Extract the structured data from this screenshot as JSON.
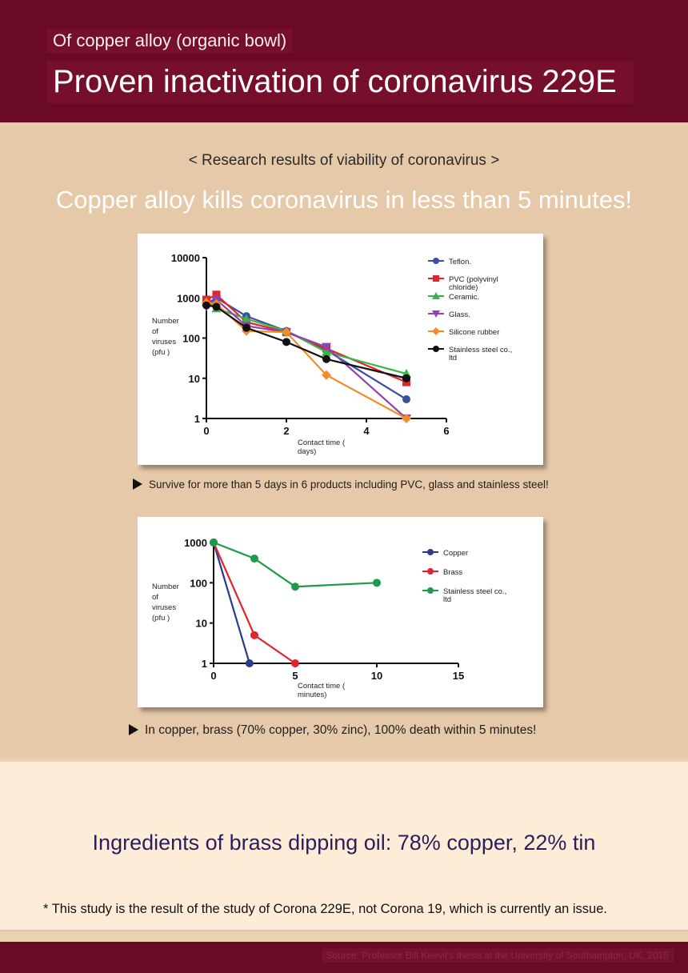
{
  "header": {
    "subtitle": "Of copper alloy (organic bowl)",
    "title": "Proven inactivation of coronavirus 229E"
  },
  "research_label": "< Research results of viability of coronavirus >",
  "headline": "Copper alloy kills coronavirus in less than 5 minutes!",
  "caption1": "Survive for more than 5 days in 6 products including PVC, glass and stainless steel!",
  "caption2": "In copper, brass (70% copper, 30% zinc), 100% death within 5 minutes!",
  "ingredients": "Ingredients of brass dipping oil: 78% copper, 22% tin",
  "footnote": "* This study is the result of the study of Corona 229E, not Corona 19, which is currently an issue.",
  "source": "Source: Professor Bill Keevil's thesis at the University of Southampton, UK, 2015",
  "colors": {
    "header_bg": "#6b0a24",
    "section_bg": "#e6c9a8",
    "cream_bg": "#fdecd8",
    "ingredients_text": "#2a1f5c"
  },
  "chart_data": [
    {
      "type": "line",
      "ylabel": "Number of viruses (pfu )",
      "xlabel": "Contact time ( days)",
      "y_scale": "log",
      "ylim": [
        1,
        10000
      ],
      "xlim": [
        0,
        6
      ],
      "xticks": [
        0,
        2,
        4,
        6
      ],
      "yticks": [
        1,
        10,
        100,
        1000,
        10000
      ],
      "legend_position": "top-right",
      "series": [
        {
          "name": "Teflon.",
          "color": "#3b4ea3",
          "marker": "circle",
          "x": [
            0,
            0.25,
            1,
            2,
            3,
            5
          ],
          "y": [
            700,
            1000,
            350,
            150,
            50,
            3
          ]
        },
        {
          "name": "PVC (polyvinyl chloride)",
          "color": "#e3242b",
          "marker": "square",
          "x": [
            0,
            0.25,
            1,
            2,
            3,
            5
          ],
          "y": [
            900,
            1200,
            250,
            140,
            55,
            8
          ]
        },
        {
          "name": "Ceramic.",
          "color": "#3bb44a",
          "marker": "triangle-up",
          "x": [
            0,
            0.25,
            1,
            2,
            3,
            5
          ],
          "y": [
            800,
            550,
            300,
            150,
            45,
            13
          ]
        },
        {
          "name": "Glass.",
          "color": "#8e44ad",
          "marker": "triangle-down",
          "x": [
            0,
            0.25,
            1,
            2,
            3,
            5
          ],
          "y": [
            600,
            900,
            200,
            140,
            60,
            1
          ]
        },
        {
          "name": "Silicone rubber",
          "color": "#f28c28",
          "marker": "diamond",
          "x": [
            0,
            0.25,
            1,
            2,
            3,
            5
          ],
          "y": [
            750,
            700,
            150,
            140,
            12,
            1
          ]
        },
        {
          "name": "Stainless steel co., ltd",
          "color": "#111111",
          "marker": "circle",
          "x": [
            0,
            0.25,
            1,
            2,
            3,
            5
          ],
          "y": [
            650,
            600,
            180,
            80,
            30,
            10
          ]
        }
      ]
    },
    {
      "type": "line",
      "ylabel": "Number of viruses (pfu )",
      "xlabel": "Contact time ( minutes)",
      "y_scale": "log",
      "ylim": [
        1,
        1000
      ],
      "xlim": [
        0,
        15
      ],
      "xticks": [
        0,
        5,
        10,
        15
      ],
      "yticks": [
        1,
        10,
        100,
        1000
      ],
      "legend_position": "top-right",
      "series": [
        {
          "name": "Copper",
          "color": "#2b3a8f",
          "marker": "circle",
          "x": [
            0,
            2.2
          ],
          "y": [
            1000,
            1
          ]
        },
        {
          "name": "Brass",
          "color": "#e0242c",
          "marker": "circle",
          "x": [
            0,
            2.5,
            5
          ],
          "y": [
            1000,
            5,
            1
          ]
        },
        {
          "name": "Stainless steel co., ltd",
          "color": "#1e9a4a",
          "marker": "circle",
          "x": [
            0,
            2.5,
            5,
            10
          ],
          "y": [
            1000,
            400,
            80,
            100
          ]
        }
      ]
    }
  ]
}
